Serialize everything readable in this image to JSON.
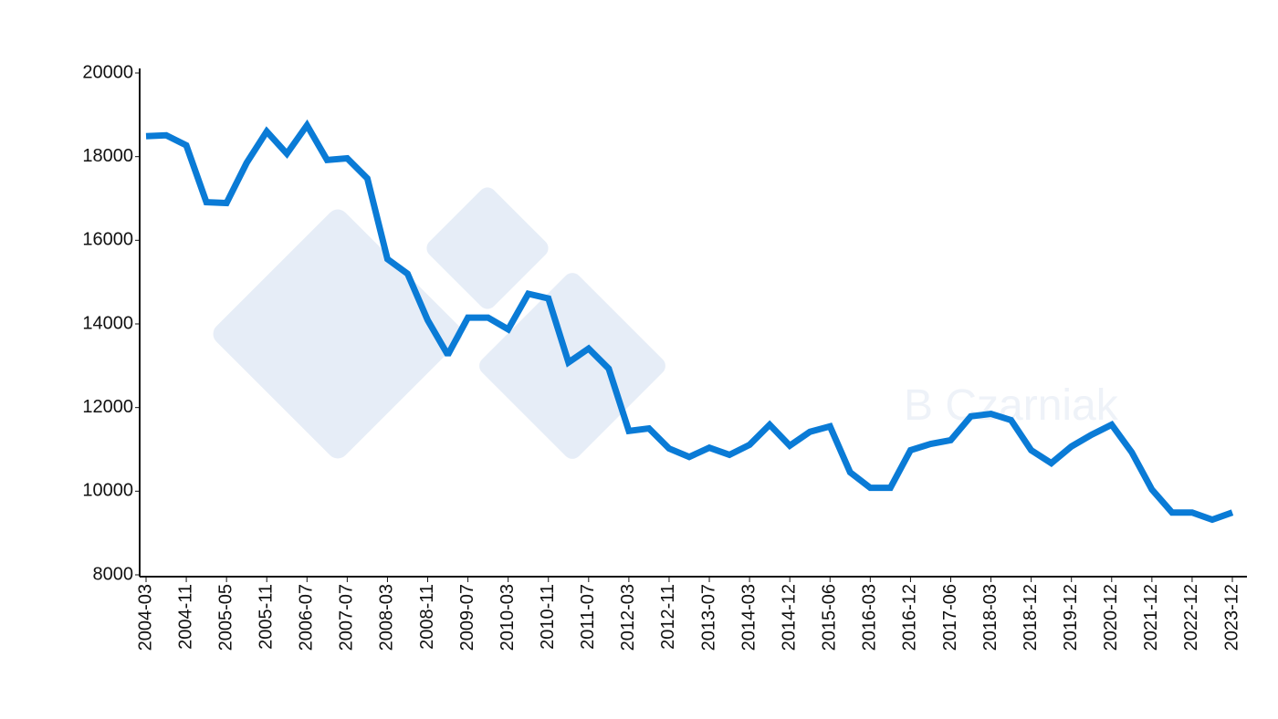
{
  "chart_data": {
    "type": "line",
    "watermark": "B Czarniak",
    "categories": [
      "2004-03",
      null,
      "2004-11",
      null,
      "2005-05",
      null,
      "2005-11",
      null,
      "2006-07",
      null,
      "2007-07",
      null,
      "2008-03",
      null,
      "2008-11",
      null,
      "2009-07",
      null,
      "2010-03",
      null,
      "2010-11",
      null,
      "2011-07",
      null,
      "2012-03",
      null,
      "2012-11",
      null,
      "2013-07",
      null,
      "2014-03",
      null,
      "2014-12",
      null,
      "2015-06",
      null,
      "2016-03",
      null,
      "2016-12",
      null,
      "2017-06",
      null,
      "2018-03",
      null,
      "2018-12",
      null,
      "2019-12",
      null,
      "2020-12",
      null,
      "2021-12",
      null,
      "2022-12",
      null,
      "2023-12"
    ],
    "series": [
      {
        "color": "#0a7bd6",
        "values": [
          18490,
          18510,
          18270,
          16910,
          16890,
          17850,
          18600,
          18070,
          18750,
          17920,
          17960,
          17480,
          15550,
          15200,
          14090,
          13260,
          14150,
          14150,
          13870,
          14720,
          14610,
          13080,
          13410,
          12930,
          11440,
          11500,
          11020,
          10820,
          11040,
          10870,
          11110,
          11590,
          11090,
          11420,
          11550,
          10450,
          10080,
          10080,
          10980,
          11130,
          11220,
          11790,
          11850,
          11700,
          10980,
          10670,
          11070,
          11350,
          11590,
          10930,
          10040,
          9490,
          9490,
          9320,
          9490
        ]
      }
    ],
    "ylim": [
      8000,
      20000
    ],
    "yticks": [
      8000,
      10000,
      12000,
      14000,
      16000,
      18000,
      20000
    ],
    "grid": false
  }
}
